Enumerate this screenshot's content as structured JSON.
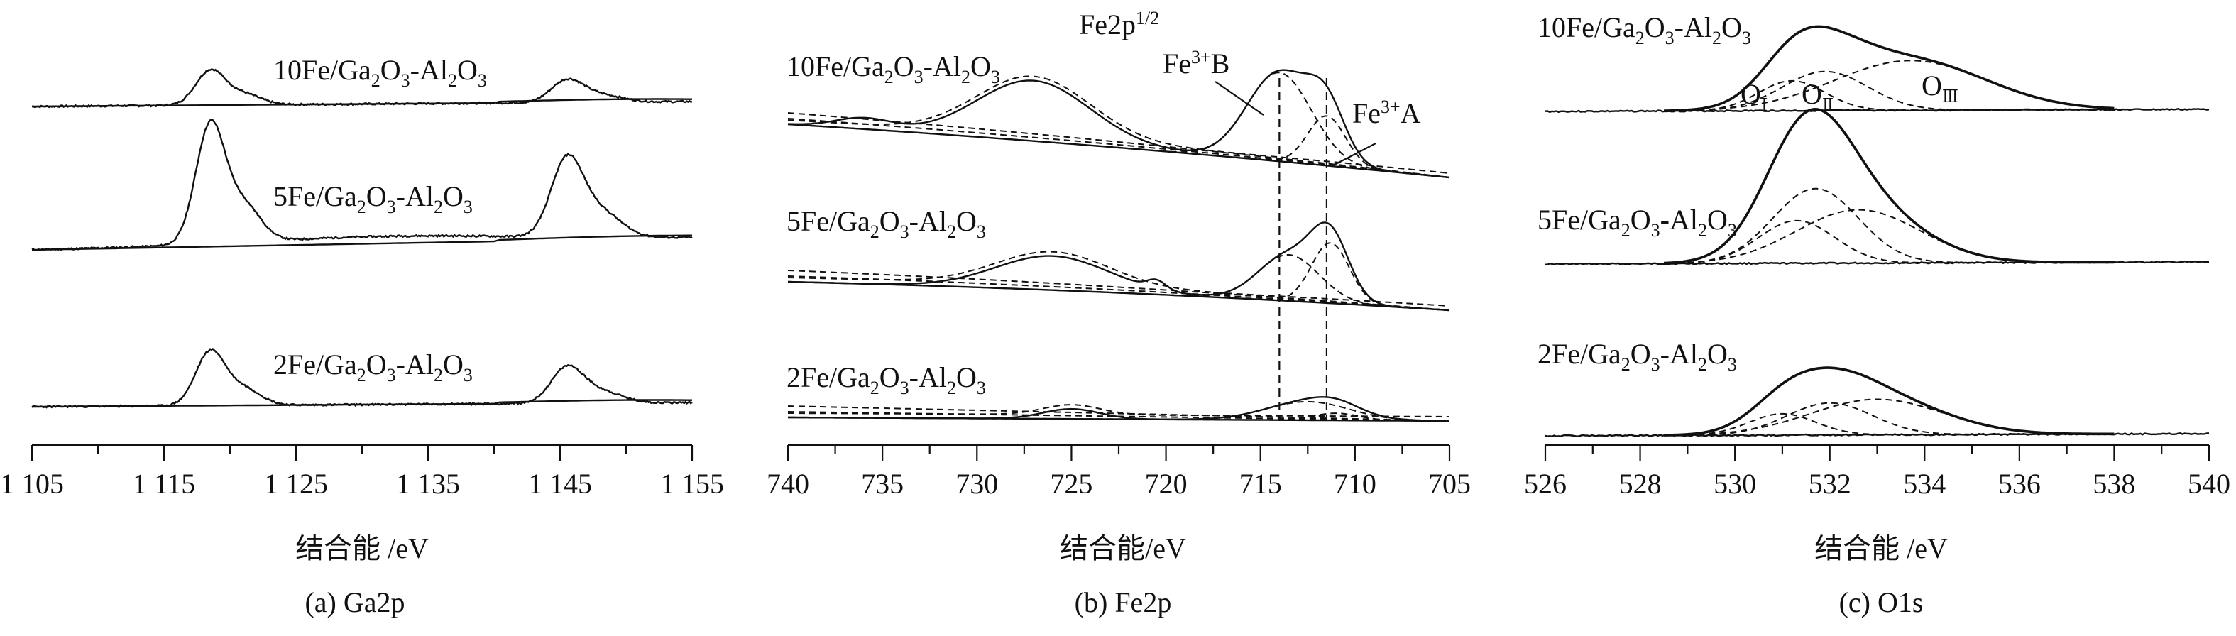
{
  "chart_data": [
    {
      "type": "line",
      "panel": "a",
      "caption": "(a) Ga2p",
      "xlabel": "结合能 /eV",
      "xlim": [
        1105,
        1155
      ],
      "ticks": [
        1105,
        1115,
        1125,
        1135,
        1145,
        1155
      ],
      "tick_labels": [
        "1 105",
        "1 115",
        "1 125",
        "1 135",
        "1 145",
        "1 155"
      ],
      "series": [
        {
          "name": "10Fe/Ga2O3-Al2O3",
          "label": {
            "main": "10Fe/Ga",
            "s1": "2",
            "m1": "O",
            "s2": "3",
            "m2": "-Al",
            "s3": "2",
            "m3": "O",
            "s4": "3"
          }
        },
        {
          "name": "5Fe/Ga2O3-Al2O3",
          "label": {
            "main": "5Fe/Ga",
            "s1": "2",
            "m1": "O",
            "s2": "3",
            "m2": "-Al",
            "s3": "2",
            "m3": "O",
            "s4": "3"
          }
        },
        {
          "name": "2Fe/Ga2O3-Al2O3",
          "label": {
            "main": "2Fe/Ga",
            "s1": "2",
            "m1": "O",
            "s2": "3",
            "m2": "-Al",
            "s3": "2",
            "m3": "O",
            "s4": "3"
          }
        }
      ]
    },
    {
      "type": "line",
      "panel": "b",
      "caption": "(b) Fe2p",
      "xlabel": "结合能/eV",
      "xlim": [
        740,
        705
      ],
      "ticks": [
        740,
        735,
        730,
        725,
        720,
        715,
        710,
        705
      ],
      "tick_labels": [
        "740",
        "735",
        "730",
        "725",
        "720",
        "715",
        "710",
        "705"
      ],
      "annotations": {
        "fe2p": "Fe2p",
        "fe2p_sup": "1/2",
        "fe3b": "Fe",
        "fe3b_sup": "3+",
        "fe3b_tail": "B",
        "fe3a": "Fe",
        "fe3a_sup": "3+",
        "fe3a_tail": "A"
      },
      "reference_lines": [
        714.0,
        711.5
      ],
      "series": [
        {
          "name": "10Fe/Ga2O3-Al2O3",
          "label": {
            "main": "10Fe/Ga",
            "s1": "2",
            "m1": "O",
            "s2": "3",
            "m2": "-Al",
            "s3": "2",
            "m3": "O",
            "s4": "3"
          }
        },
        {
          "name": "5Fe/Ga2O3-Al2O3",
          "label": {
            "main": "5Fe/Ga",
            "s1": "2",
            "m1": "O",
            "s2": "3",
            "m2": "-Al",
            "s3": "2",
            "m3": "O",
            "s4": "3"
          }
        },
        {
          "name": "2Fe/Ga2O3-Al2O3",
          "label": {
            "main": "2Fe/Ga",
            "s1": "2",
            "m1": "O",
            "s2": "3",
            "m2": "-Al",
            "s3": "2",
            "m3": "O",
            "s4": "3"
          }
        }
      ]
    },
    {
      "type": "line",
      "panel": "c",
      "caption": "(c) O1s",
      "xlabel": "结合能 /eV",
      "xlim": [
        526,
        540
      ],
      "ticks": [
        526,
        528,
        530,
        532,
        534,
        536,
        538,
        540
      ],
      "tick_labels": [
        "526",
        "528",
        "530",
        "532",
        "534",
        "536",
        "538",
        "540"
      ],
      "annotations": {
        "o1": "O",
        "o1_sub": "Ⅰ",
        "o2": "O",
        "o2_sub": "Ⅱ",
        "o3": "O",
        "o3_sub": "Ⅲ"
      },
      "series": [
        {
          "name": "10Fe/Ga2O3-Al2O3",
          "label": {
            "main": "10Fe/Ga",
            "s1": "2",
            "m1": "O",
            "s2": "3",
            "m2": "-Al",
            "s3": "2",
            "m3": "O",
            "s4": "3"
          }
        },
        {
          "name": "5Fe/Ga2O3-Al2O3",
          "label": {
            "main": "5Fe/Ga",
            "s1": "2",
            "m1": "O",
            "s2": "3",
            "m2": "-Al",
            "s3": "2",
            "m3": "O",
            "s4": "3"
          }
        },
        {
          "name": "2Fe/Ga2O3-Al2O3",
          "label": {
            "main": "2Fe/Ga",
            "s1": "2",
            "m1": "O",
            "s2": "3",
            "m2": "-Al",
            "s3": "2",
            "m3": "O",
            "s4": "3"
          }
        }
      ]
    }
  ]
}
